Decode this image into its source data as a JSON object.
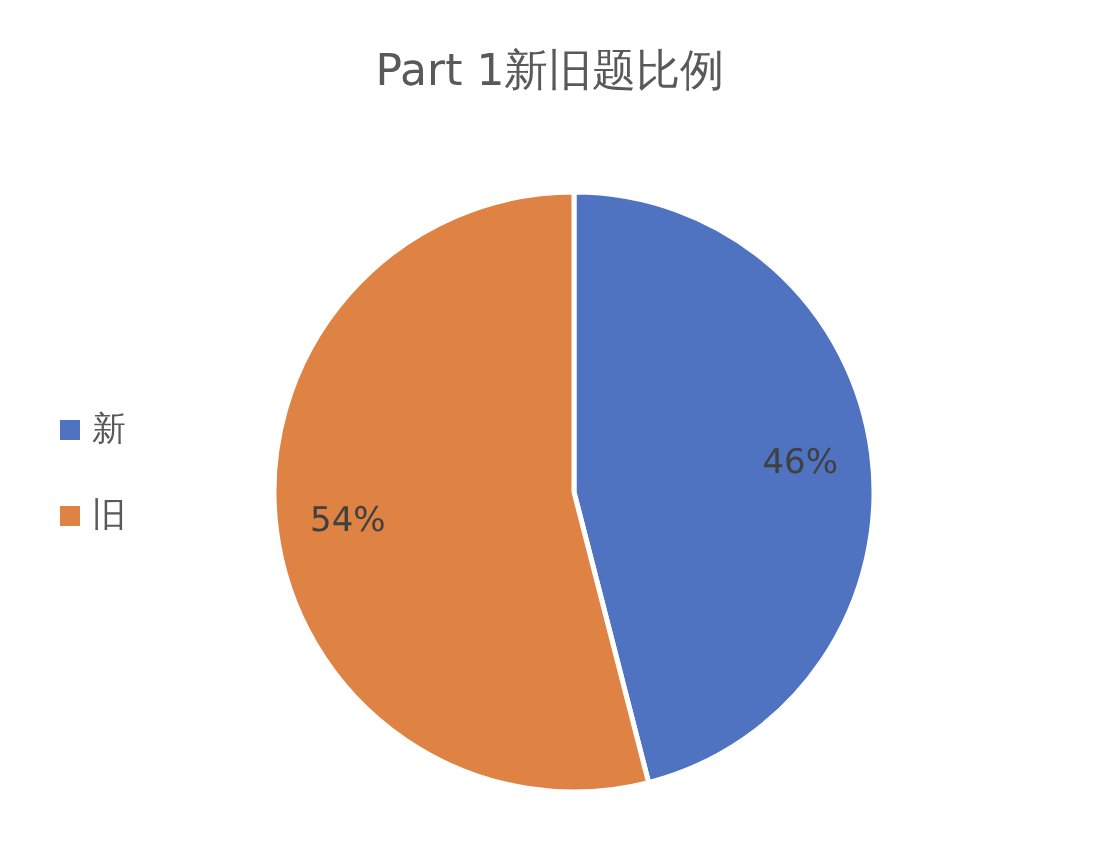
{
  "chart_data": {
    "type": "pie",
    "title": "Part 1新旧题比例",
    "categories": [
      "新",
      "旧"
    ],
    "values": [
      46,
      54
    ],
    "colors": [
      "#4f73c1",
      "#df8344"
    ],
    "value_labels": [
      "46%",
      "54%"
    ],
    "legend": "left"
  }
}
